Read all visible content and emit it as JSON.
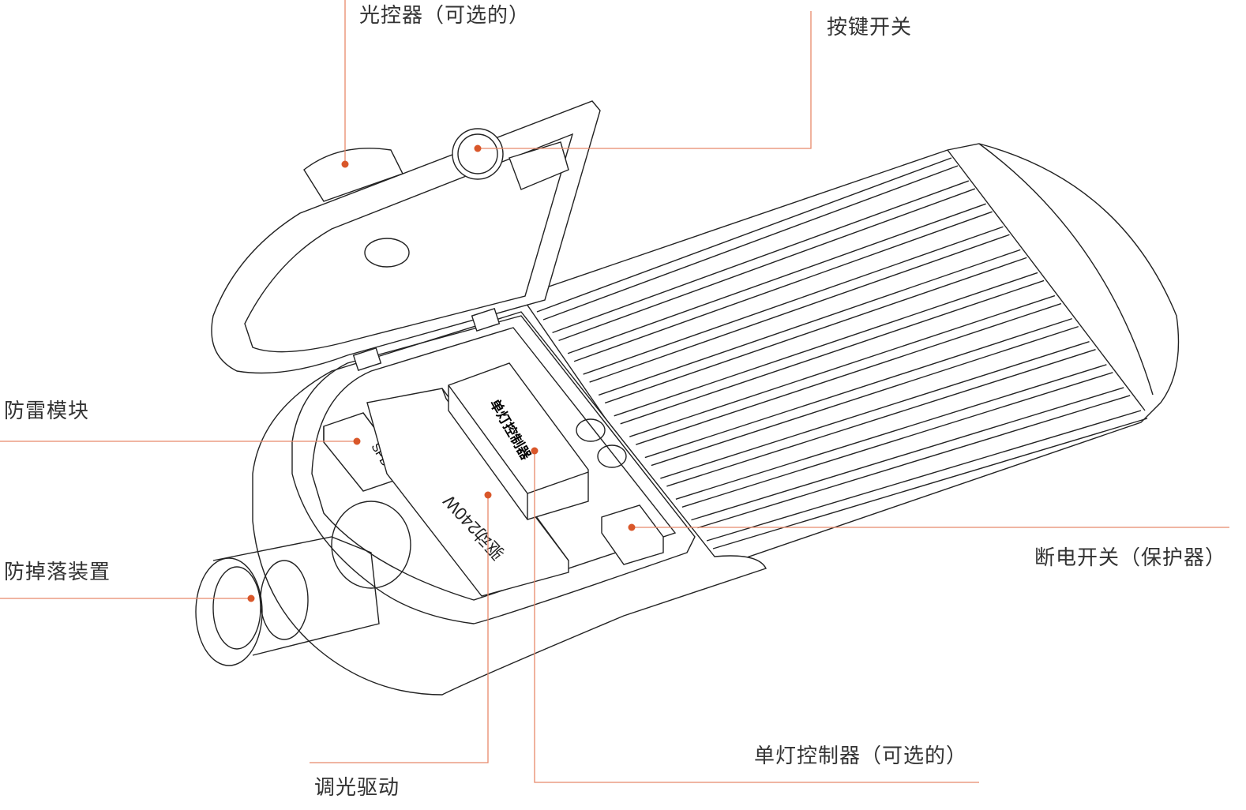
{
  "labels": {
    "photocontroller": "光控器（可选的）",
    "push_switch": "按键开关",
    "surge_module": "防雷模块",
    "anti_drop": "防掉落装置",
    "dimming_driver": "调光驱动",
    "single_lamp_controller": "单灯控制器（可选的）",
    "breaker": "断电开关（保护器）"
  },
  "component_markings": {
    "spd": "SPD",
    "controller": "单灯控制器",
    "driver": "驱动240W"
  },
  "colors": {
    "leader_line": "#e8896a",
    "leader_dot": "#d9572a",
    "text": "#333333",
    "drawing": "#222222"
  }
}
